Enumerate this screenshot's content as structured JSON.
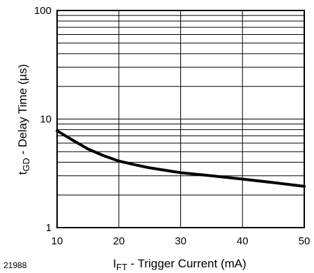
{
  "chart_data": {
    "type": "line",
    "title": "",
    "x_scale": "linear",
    "y_scale": "log",
    "xlim": [
      10,
      50
    ],
    "ylim": [
      1,
      100
    ],
    "x_ticks": [
      "10",
      "20",
      "30",
      "40",
      "50"
    ],
    "y_ticks": [
      "1",
      "10",
      "100"
    ],
    "xlabel": {
      "main": "I",
      "sub": "FT",
      "rest": " - Trigger Current (mA)"
    },
    "ylabel": {
      "main": "t",
      "sub": "GD",
      "rest": " - Delay Time (µs)"
    },
    "grid": true,
    "figure_id": "21988",
    "line_color": "#000000",
    "series": [
      {
        "x": [
          10,
          12.5,
          15,
          17.5,
          20,
          22.5,
          25,
          30,
          35,
          40,
          45,
          50
        ],
        "values": [
          7.8,
          6.4,
          5.3,
          4.6,
          4.1,
          3.8,
          3.55,
          3.2,
          3.0,
          2.8,
          2.6,
          2.4
        ]
      }
    ]
  }
}
